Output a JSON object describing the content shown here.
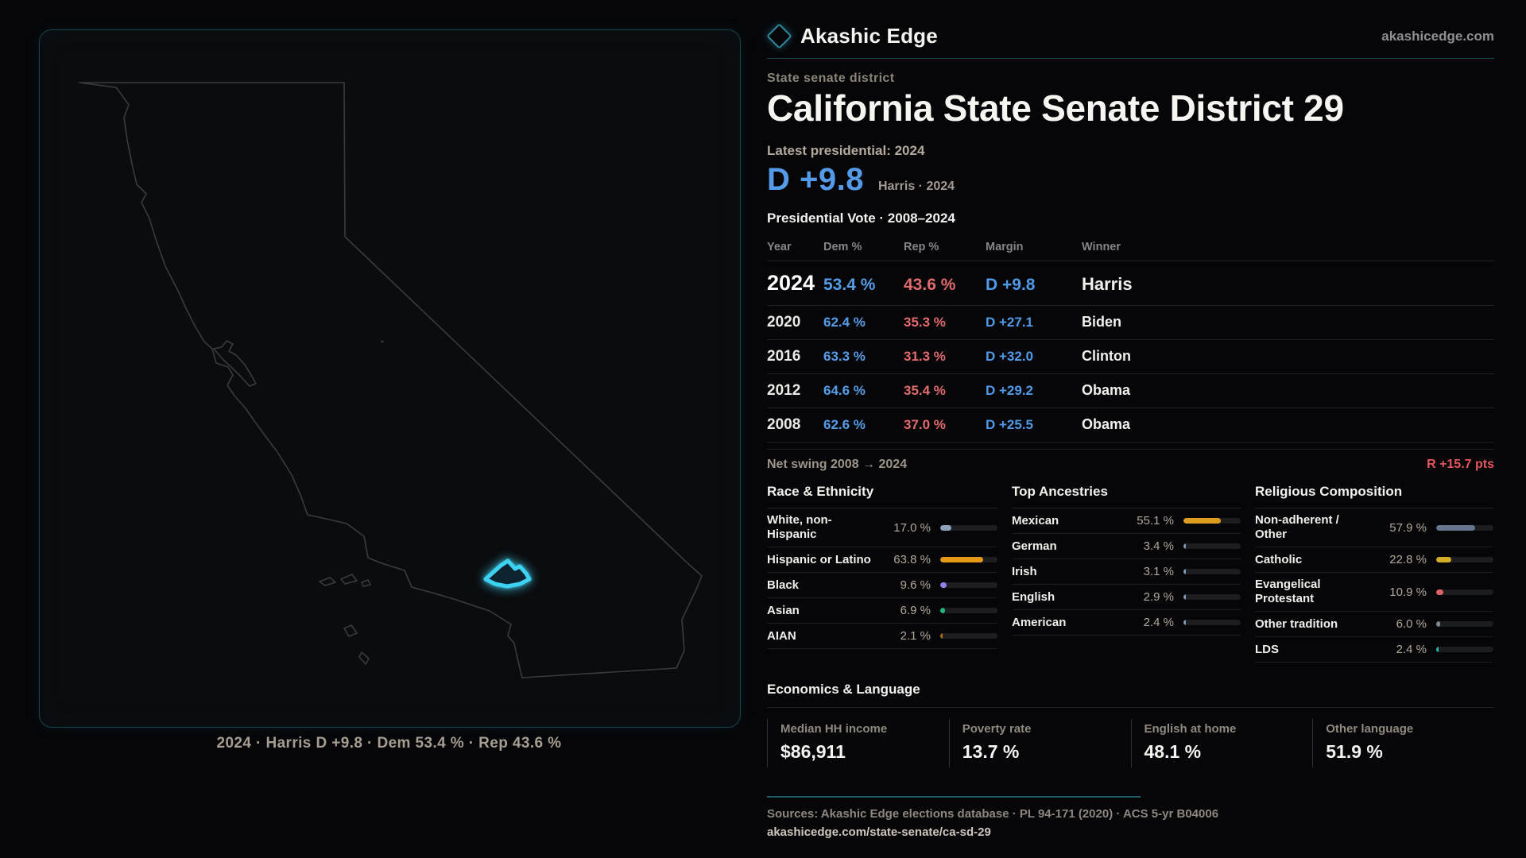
{
  "brand": {
    "name": "Akashic Edge",
    "domain": "akashicedge.com"
  },
  "header": {
    "kicker": "State senate district",
    "title": "California State Senate District 29"
  },
  "latest": {
    "label": "Latest presidential: 2024",
    "margin": "D +9.8",
    "detail": "Harris · 2024"
  },
  "map": {
    "caption": "2024 · Harris D +9.8 · Dem 53.4 % · Rep 43.6 %",
    "district_outline_color": "#3ed2f2",
    "state_outline_color": "#3a3b3e"
  },
  "colors": {
    "dem_blue": "#569de9",
    "rep_red": "#e26b6e",
    "swing_red": "#e2585c",
    "accent_teal": "#1d5766"
  },
  "chart_data": [
    {
      "type": "table",
      "title": "Presidential Vote · 2008–2024",
      "columns": [
        "Year",
        "Dem %",
        "Rep %",
        "Margin",
        "Winner"
      ],
      "rows": [
        {
          "year": "2024",
          "dem": "53.4 %",
          "rep": "43.6 %",
          "margin": "D +9.8",
          "winner": "Harris",
          "dem_pct": 53.4,
          "rep_pct": 43.6
        },
        {
          "year": "2020",
          "dem": "62.4 %",
          "rep": "35.3 %",
          "margin": "D +27.1",
          "winner": "Biden",
          "dem_pct": 62.4,
          "rep_pct": 35.3
        },
        {
          "year": "2016",
          "dem": "63.3 %",
          "rep": "31.3 %",
          "margin": "D +32.0",
          "winner": "Clinton",
          "dem_pct": 63.3,
          "rep_pct": 31.3
        },
        {
          "year": "2012",
          "dem": "64.6 %",
          "rep": "35.4 %",
          "margin": "D +29.2",
          "winner": "Obama",
          "dem_pct": 64.6,
          "rep_pct": 35.4
        },
        {
          "year": "2008",
          "dem": "62.6 %",
          "rep": "37.0 %",
          "margin": "D +25.5",
          "winner": "Obama",
          "dem_pct": 62.6,
          "rep_pct": 37.0
        }
      ],
      "net_swing_label": "Net swing 2008 → 2024",
      "net_swing_value": "R +15.7 pts"
    },
    {
      "type": "bar",
      "title": "Race & Ethnicity",
      "unit": "%",
      "scale_max": 85,
      "rows": [
        {
          "label": "White, non-Hispanic",
          "value": "17.0 %",
          "pct": 17.0,
          "color": "#8ba3bd"
        },
        {
          "label": "Hispanic or Latino",
          "value": "63.8 %",
          "pct": 63.8,
          "color": "#e59a17"
        },
        {
          "label": "Black",
          "value": "9.6 %",
          "pct": 9.6,
          "color": "#9a7ef0"
        },
        {
          "label": "Asian",
          "value": "6.9 %",
          "pct": 6.9,
          "color": "#1fb87a"
        },
        {
          "label": "AIAN",
          "value": "2.1 %",
          "pct": 2.1,
          "color": "#b06a10"
        }
      ]
    },
    {
      "type": "bar",
      "title": "Top Ancestries",
      "unit": "%",
      "scale_max": 85,
      "rows": [
        {
          "label": "Mexican",
          "value": "55.1 %",
          "pct": 55.1,
          "color": "#dd9d1f"
        },
        {
          "label": "German",
          "value": "3.4 %",
          "pct": 3.4,
          "color": "#7e98b4"
        },
        {
          "label": "Irish",
          "value": "3.1 %",
          "pct": 3.1,
          "color": "#7e98b4"
        },
        {
          "label": "English",
          "value": "2.9 %",
          "pct": 2.9,
          "color": "#7e98b4"
        },
        {
          "label": "American",
          "value": "2.4 %",
          "pct": 2.4,
          "color": "#7e98b4"
        }
      ]
    },
    {
      "type": "bar",
      "title": "Religious Composition",
      "unit": "%",
      "scale_max": 85,
      "rows": [
        {
          "label": "Non-adherent / Other",
          "value": "57.9 %",
          "pct": 57.9,
          "color": "#66758e"
        },
        {
          "label": "Catholic",
          "value": "22.8 %",
          "pct": 22.8,
          "color": "#d4ac25"
        },
        {
          "label": "Evangelical Protestant",
          "value": "10.9 %",
          "pct": 10.9,
          "color": "#e0646a"
        },
        {
          "label": "Other tradition",
          "value": "6.0 %",
          "pct": 6.0,
          "color": "#7d8795"
        },
        {
          "label": "LDS",
          "value": "2.4 %",
          "pct": 2.4,
          "color": "#26b5a3"
        }
      ]
    },
    {
      "type": "table",
      "title": "Economics & Language",
      "stats": [
        {
          "label": "Median HH income",
          "value": "$86,911"
        },
        {
          "label": "Poverty rate",
          "value": "13.7 %"
        },
        {
          "label": "English at home",
          "value": "48.1 %"
        },
        {
          "label": "Other language",
          "value": "51.9 %"
        }
      ]
    }
  ],
  "footer": {
    "sources": "Sources: Akashic Edge elections database · PL 94-171 (2020) · ACS 5-yr B04006",
    "permalink": "akashicedge.com/state-senate/ca-sd-29"
  }
}
